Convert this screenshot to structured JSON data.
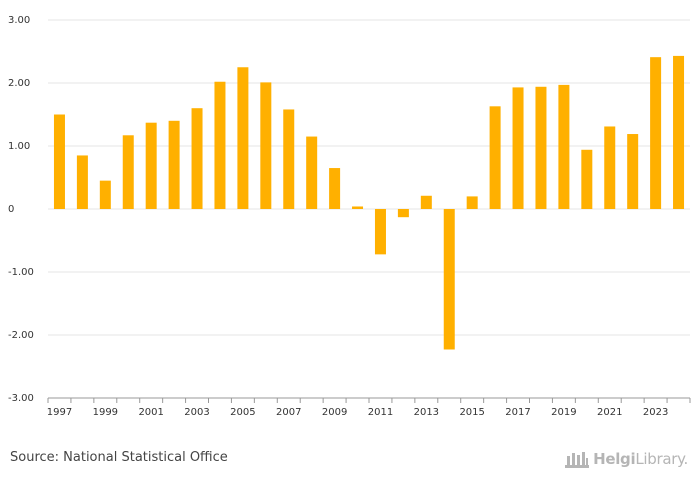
{
  "colors": {
    "bar": "#FFB000",
    "grid": "#e6e6e6",
    "axis": "#999999"
  },
  "chart_data": {
    "type": "bar",
    "title": "",
    "xlabel": "",
    "ylabel": "",
    "ylim": [
      -3,
      3
    ],
    "yticks": [
      3,
      2,
      1,
      0,
      -1,
      -2,
      -3
    ],
    "ytick_labels": [
      "3.00",
      "2.00",
      "1.00",
      "0",
      "-1.00",
      "-2.00",
      "-3.00"
    ],
    "categories": [
      "1997",
      "1998",
      "1999",
      "2000",
      "2001",
      "2002",
      "2003",
      "2004",
      "2005",
      "2006",
      "2007",
      "2008",
      "2009",
      "2010",
      "2011",
      "2012",
      "2013",
      "2014",
      "2015",
      "2016",
      "2017",
      "2018",
      "2019",
      "2020",
      "2021",
      "2022",
      "2023",
      "2024"
    ],
    "xtick_labels": [
      "1997",
      "1999",
      "2001",
      "2003",
      "2005",
      "2007",
      "2009",
      "2011",
      "2013",
      "2015",
      "2017",
      "2019",
      "2021",
      "2023"
    ],
    "values": [
      1.5,
      0.85,
      0.45,
      1.17,
      1.37,
      1.4,
      1.6,
      2.02,
      2.25,
      2.01,
      1.58,
      1.15,
      0.65,
      0.04,
      -0.72,
      -0.13,
      0.21,
      -2.23,
      0.2,
      1.63,
      1.93,
      1.94,
      1.97,
      0.94,
      1.31,
      1.19,
      2.41,
      2.43
    ]
  },
  "footer": {
    "source": "Source: National Statistical Office",
    "brand_name": "Helgi",
    "brand_suffix": "Library."
  }
}
